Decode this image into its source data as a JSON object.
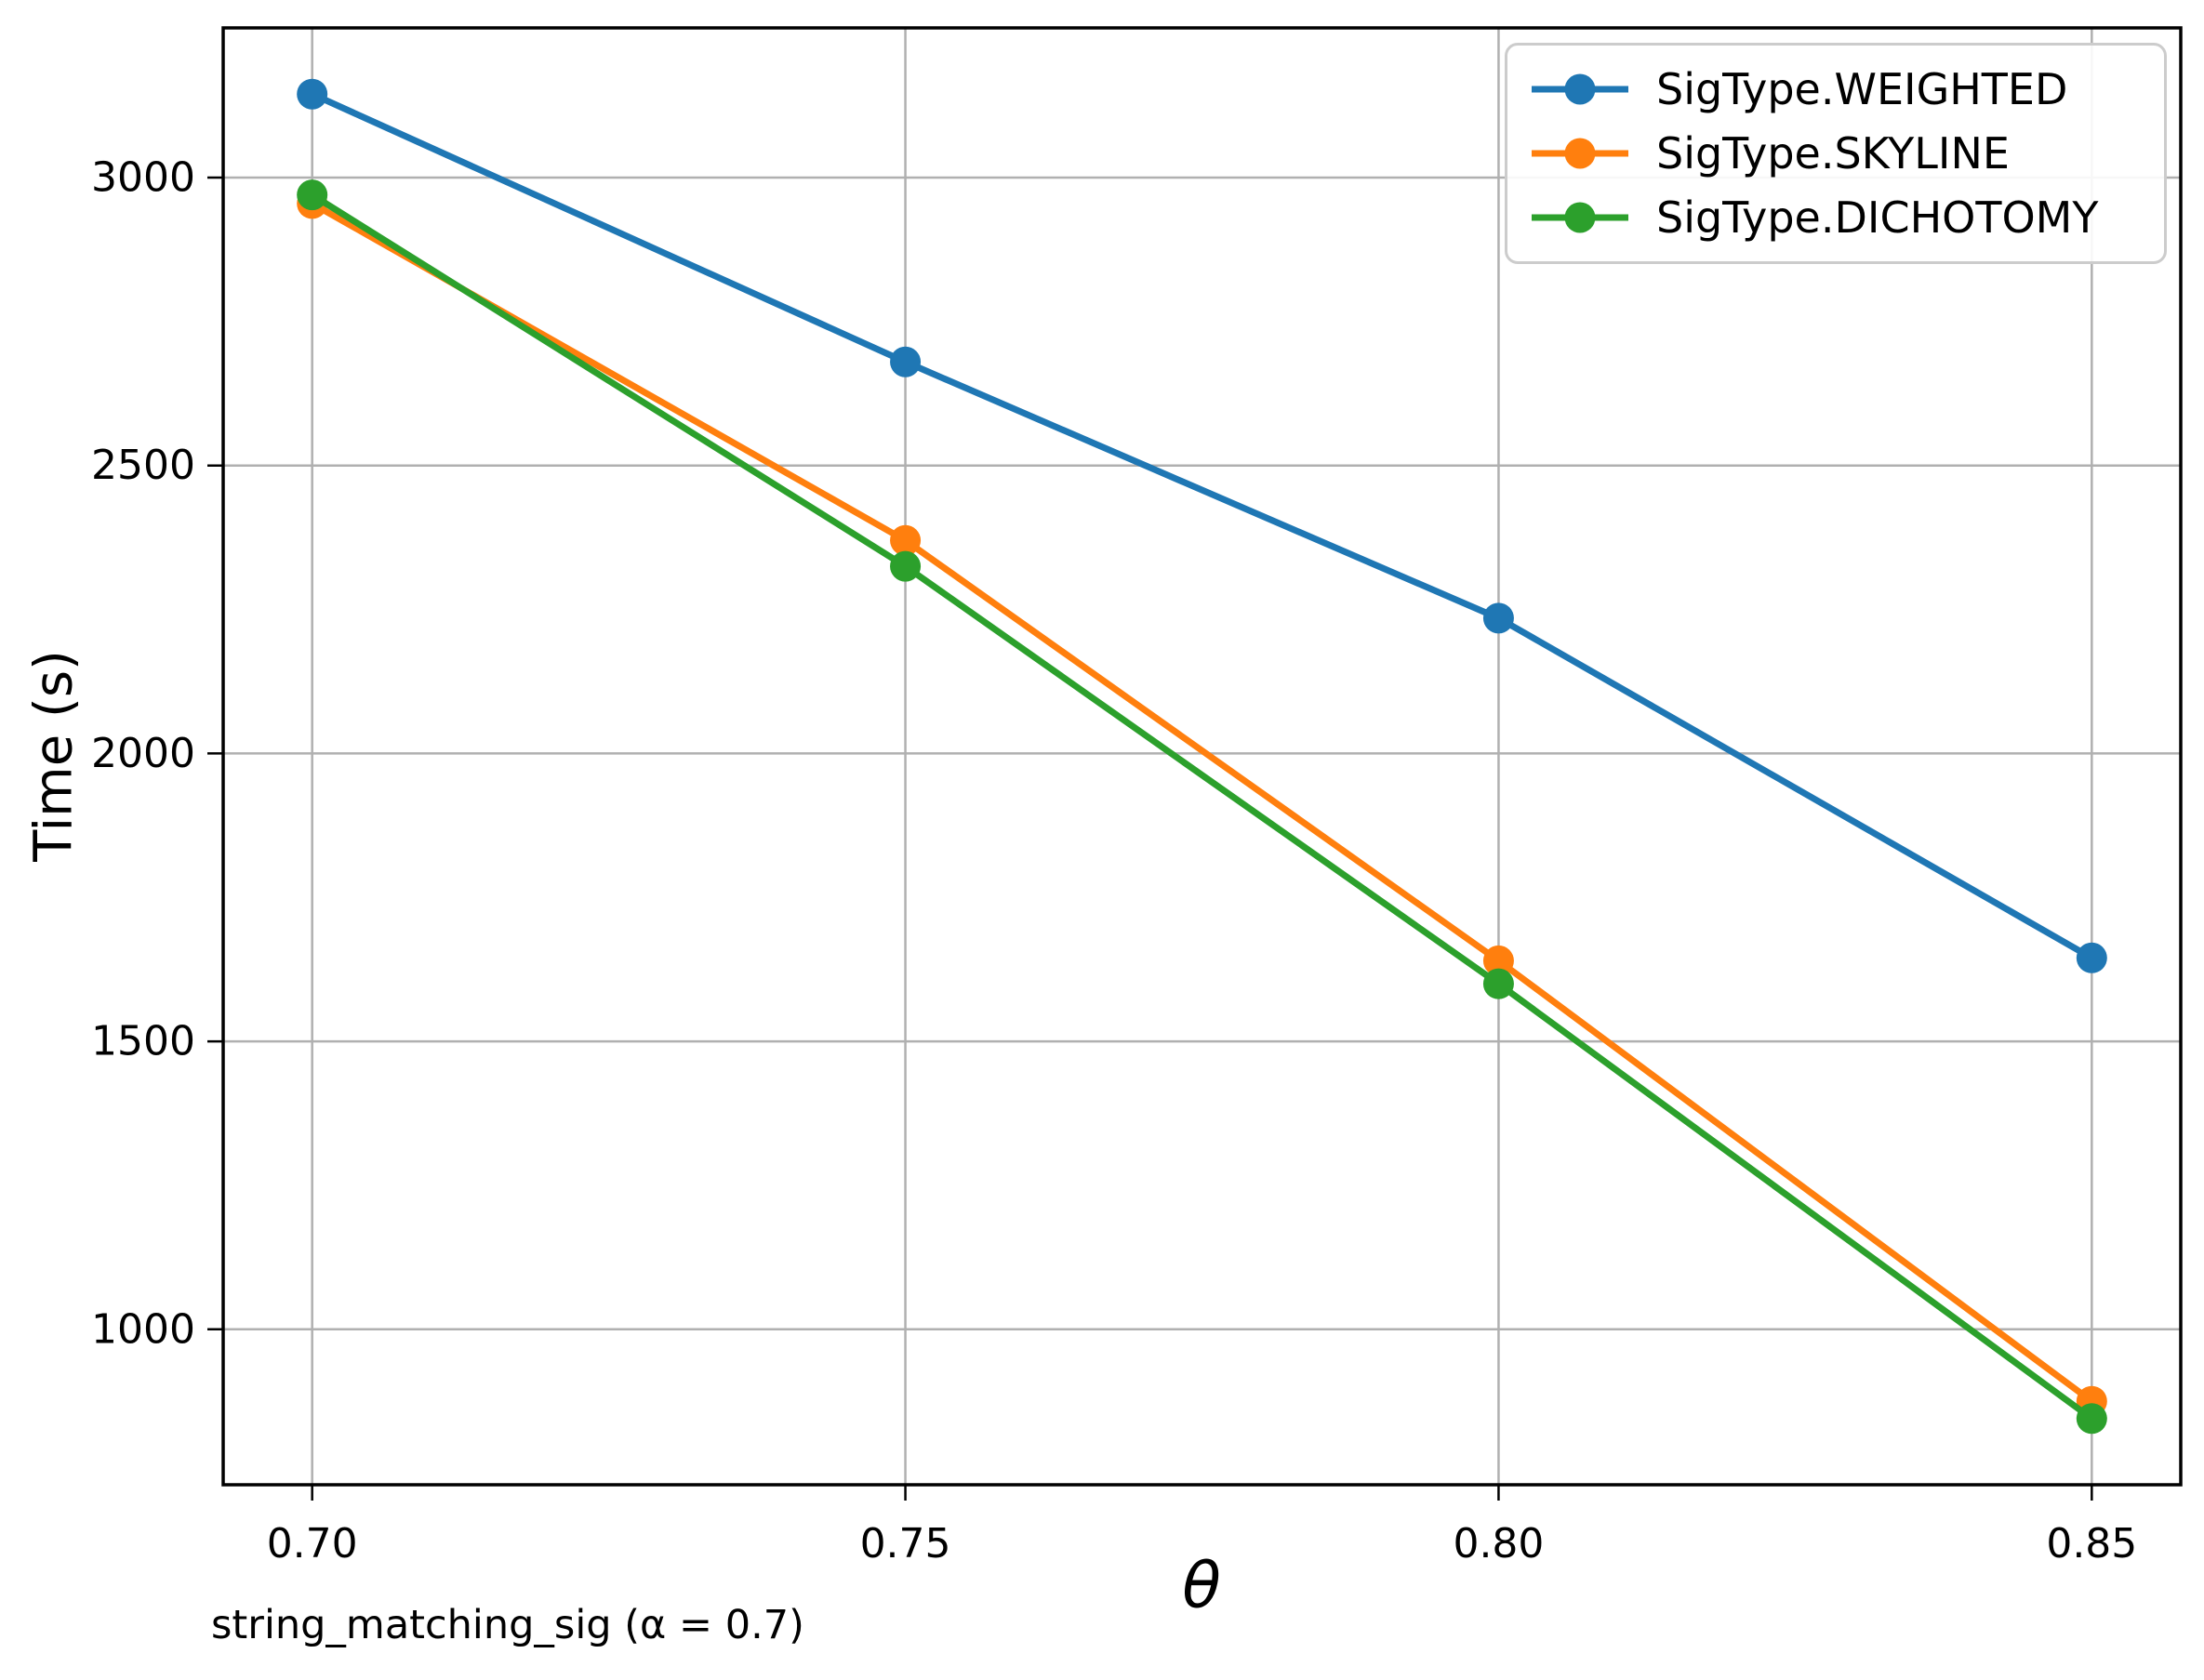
{
  "chart_data": {
    "type": "line",
    "xlabel": "θ",
    "ylabel": "Time (s)",
    "caption": "string_matching_sig (α = 0.7)",
    "x": [
      0.7,
      0.75,
      0.8,
      0.85
    ],
    "x_tick_labels": [
      "0.70",
      "0.75",
      "0.80",
      "0.85"
    ],
    "y_ticks": [
      1000,
      1500,
      2000,
      2500,
      3000
    ],
    "y_tick_labels": [
      "1000",
      "1500",
      "2000",
      "2500",
      "3000"
    ],
    "xlim": [
      0.6925,
      0.8575
    ],
    "ylim": [
      730,
      3260
    ],
    "grid": true,
    "legend_position": "upper right",
    "series": [
      {
        "name": "SigType.WEIGHTED",
        "color": "#1f77b4",
        "values": [
          3145,
          2680,
          2235,
          1645
        ]
      },
      {
        "name": "SigType.SKYLINE",
        "color": "#ff7f0e",
        "values": [
          2955,
          2370,
          1640,
          875
        ]
      },
      {
        "name": "SigType.DICHOTOMY",
        "color": "#2ca02c",
        "values": [
          2970,
          2325,
          1600,
          845
        ]
      }
    ],
    "style": {
      "grid_color": "#b0b0b0",
      "spine_color": "#000000",
      "tick_color": "#000000",
      "legend_border_color": "#cccccc",
      "background": "#ffffff"
    }
  }
}
